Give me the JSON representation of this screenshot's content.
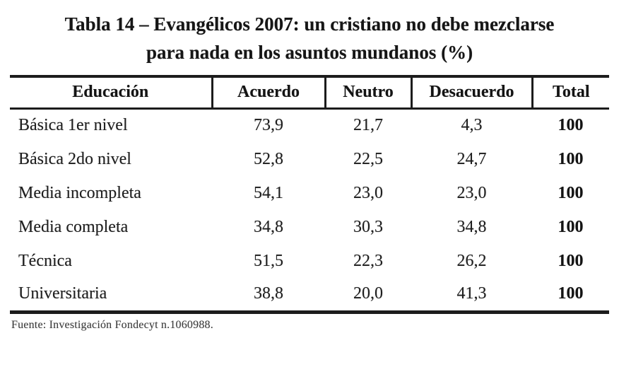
{
  "title": {
    "line1": "Tabla 14 – Evangélicos 2007: un cristiano no debe mezclarse",
    "line2": "para nada en los asuntos mundanos (%)"
  },
  "table": {
    "columns": [
      "Educación",
      "Acuerdo",
      "Neutro",
      "Desacuerdo",
      "Total"
    ],
    "rows": [
      [
        "Básica 1er nivel",
        "73,9",
        "21,7",
        "4,3",
        "100"
      ],
      [
        "Básica 2do nivel",
        "52,8",
        "22,5",
        "24,7",
        "100"
      ],
      [
        "Media incompleta",
        "54,1",
        "23,0",
        "23,0",
        "100"
      ],
      [
        "Media completa",
        "34,8",
        "30,3",
        "34,8",
        "100"
      ],
      [
        "Técnica",
        "51,5",
        "22,3",
        "26,2",
        "100"
      ],
      [
        "Universitaria",
        "38,8",
        "20,0",
        "41,3",
        "100"
      ]
    ]
  },
  "footer": {
    "source": "Fuente: Investigación Fondecyt n.1060988."
  },
  "colors": {
    "text": "#1b1b1b",
    "rule": "#1c1c1c",
    "footer_text": "#3d3d3d",
    "background": "#ffffff"
  }
}
